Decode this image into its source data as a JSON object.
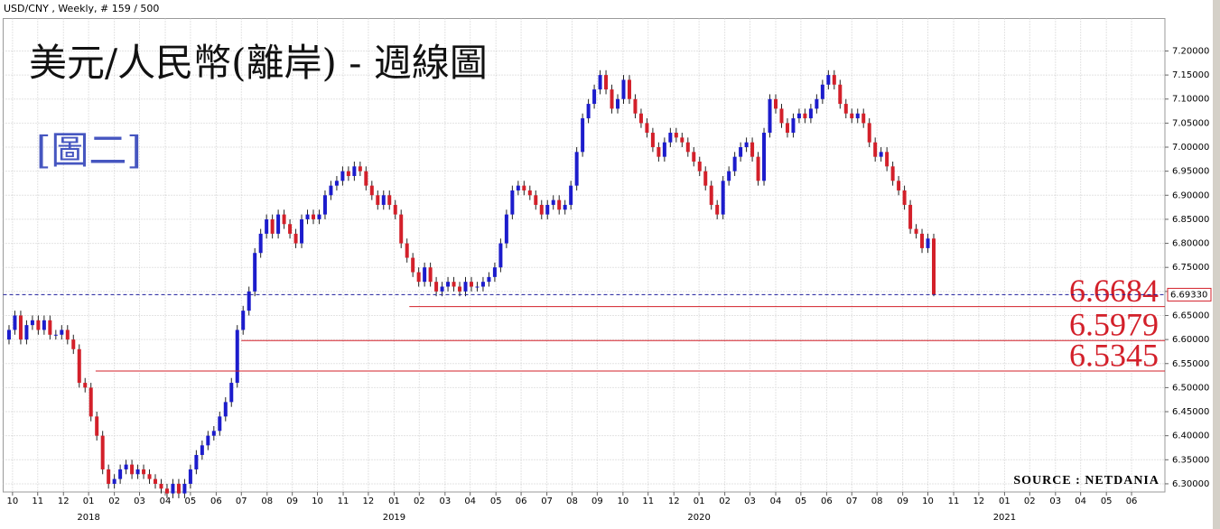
{
  "chart_data": {
    "type": "candlestick",
    "header": "USD/CNY , Weekly, # 159 / 500",
    "title": "美元/人民幣(離岸) - 週線圖",
    "subtitle": "[圖二]",
    "source": "SOURCE : NETDANIA",
    "up_color": "#1c1ccc",
    "down_color": "#d3202a",
    "grid": true,
    "open": [
      6.6,
      6.62,
      6.65,
      6.6,
      6.63,
      6.64,
      6.62,
      6.64,
      6.61,
      6.61,
      6.62,
      6.6,
      6.58,
      6.51,
      6.5,
      6.44,
      6.4,
      6.33,
      6.3,
      6.31,
      6.33,
      6.34,
      6.32,
      6.33,
      6.32,
      6.31,
      6.3,
      6.29,
      6.28,
      6.3,
      6.28,
      6.3,
      6.33,
      6.36,
      6.38,
      6.4,
      6.41,
      6.44,
      6.47,
      6.51,
      6.62,
      6.66,
      6.7,
      6.78,
      6.82,
      6.85,
      6.82,
      6.86,
      6.84,
      6.82,
      6.8,
      6.85,
      6.86,
      6.85,
      6.86,
      6.9,
      6.92,
      6.93,
      6.95,
      6.94,
      6.96,
      6.95,
      6.92,
      6.9,
      6.88,
      6.9,
      6.88,
      6.86,
      6.8,
      6.77,
      6.74,
      6.72,
      6.75,
      6.72,
      6.7,
      6.71,
      6.72,
      6.71,
      6.7,
      6.72,
      6.71,
      6.71,
      6.72,
      6.73,
      6.75,
      6.8,
      6.86,
      6.91,
      6.92,
      6.91,
      6.9,
      6.88,
      6.86,
      6.88,
      6.89,
      6.87,
      6.88,
      6.92,
      6.99,
      7.06,
      7.09,
      7.12,
      7.15,
      7.12,
      7.08,
      7.1,
      7.14,
      7.1,
      7.07,
      7.05,
      7.03,
      7.0,
      6.98,
      7.01,
      7.03,
      7.02,
      7.01,
      6.99,
      6.97,
      6.95,
      6.92,
      6.88,
      6.86,
      6.93,
      6.95,
      6.98,
      7.0,
      7.01,
      6.98,
      6.93,
      7.03,
      7.1,
      7.08,
      7.05,
      7.03,
      7.06,
      7.07,
      7.06,
      7.08,
      7.1,
      7.13,
      7.15,
      7.13,
      7.09,
      7.07,
      7.06,
      7.07,
      7.05,
      7.01,
      6.98,
      6.99,
      6.96,
      6.93,
      6.91,
      6.88,
      6.83,
      6.82,
      6.79,
      6.81
    ],
    "high": [
      6.63,
      6.66,
      6.66,
      6.64,
      6.65,
      6.65,
      6.65,
      6.65,
      6.62,
      6.63,
      6.63,
      6.61,
      6.59,
      6.52,
      6.51,
      6.45,
      6.41,
      6.34,
      6.32,
      6.34,
      6.35,
      6.35,
      6.34,
      6.34,
      6.33,
      6.32,
      6.31,
      6.3,
      6.31,
      6.31,
      6.31,
      6.34,
      6.37,
      6.39,
      6.41,
      6.42,
      6.45,
      6.48,
      6.52,
      6.63,
      6.67,
      6.71,
      6.79,
      6.83,
      6.86,
      6.86,
      6.87,
      6.87,
      6.85,
      6.83,
      6.86,
      6.87,
      6.87,
      6.87,
      6.91,
      6.93,
      6.94,
      6.96,
      6.96,
      6.97,
      6.97,
      6.96,
      6.93,
      6.91,
      6.91,
      6.91,
      6.89,
      6.87,
      6.81,
      6.78,
      6.75,
      6.76,
      6.76,
      6.73,
      6.72,
      6.73,
      6.73,
      6.72,
      6.73,
      6.73,
      6.72,
      6.73,
      6.74,
      6.76,
      6.81,
      6.87,
      6.92,
      6.93,
      6.93,
      6.92,
      6.91,
      6.89,
      6.89,
      6.9,
      6.9,
      6.89,
      6.93,
      7.0,
      7.07,
      7.1,
      7.13,
      7.16,
      7.16,
      7.13,
      7.11,
      7.15,
      7.15,
      7.11,
      7.08,
      7.06,
      7.04,
      7.01,
      7.02,
      7.04,
      7.04,
      7.03,
      7.02,
      7.0,
      6.98,
      6.96,
      6.93,
      6.89,
      6.94,
      6.96,
      6.99,
      7.01,
      7.02,
      7.02,
      6.99,
      7.04,
      7.11,
      7.11,
      7.09,
      7.06,
      7.07,
      7.08,
      7.08,
      7.09,
      7.11,
      7.14,
      7.16,
      7.16,
      7.14,
      7.1,
      7.08,
      7.08,
      7.08,
      7.06,
      7.02,
      7.0,
      7.0,
      6.97,
      6.94,
      6.92,
      6.89,
      6.84,
      6.83,
      6.82,
      6.82
    ],
    "low": [
      6.59,
      6.61,
      6.59,
      6.59,
      6.62,
      6.61,
      6.61,
      6.6,
      6.6,
      6.6,
      6.59,
      6.57,
      6.5,
      6.49,
      6.43,
      6.39,
      6.32,
      6.29,
      6.29,
      6.3,
      6.32,
      6.31,
      6.31,
      6.31,
      6.3,
      6.29,
      6.28,
      6.27,
      6.27,
      6.27,
      6.27,
      6.29,
      6.32,
      6.35,
      6.37,
      6.39,
      6.4,
      6.43,
      6.46,
      6.5,
      6.61,
      6.65,
      6.69,
      6.77,
      6.81,
      6.81,
      6.81,
      6.83,
      6.81,
      6.79,
      6.79,
      6.84,
      6.84,
      6.84,
      6.85,
      6.89,
      6.91,
      6.92,
      6.93,
      6.93,
      6.94,
      6.91,
      6.89,
      6.87,
      6.87,
      6.87,
      6.85,
      6.79,
      6.76,
      6.73,
      6.71,
      6.71,
      6.71,
      6.69,
      6.69,
      6.7,
      6.7,
      6.69,
      6.69,
      6.7,
      6.7,
      6.7,
      6.71,
      6.72,
      6.74,
      6.79,
      6.85,
      6.9,
      6.9,
      6.89,
      6.87,
      6.85,
      6.85,
      6.87,
      6.86,
      6.86,
      6.87,
      6.91,
      6.98,
      7.05,
      7.08,
      7.11,
      7.11,
      7.07,
      7.07,
      7.09,
      7.09,
      7.06,
      7.04,
      7.02,
      6.99,
      6.97,
      6.97,
      7.0,
      7.01,
      7.0,
      6.98,
      6.96,
      6.94,
      6.91,
      6.87,
      6.85,
      6.85,
      6.92,
      6.94,
      6.97,
      6.99,
      6.97,
      6.92,
      6.92,
      7.02,
      7.07,
      7.04,
      7.02,
      7.02,
      7.05,
      7.05,
      7.05,
      7.07,
      7.09,
      7.12,
      7.12,
      7.08,
      7.06,
      7.05,
      7.05,
      7.04,
      7.0,
      6.97,
      6.97,
      6.95,
      6.92,
      6.9,
      6.87,
      6.82,
      6.81,
      6.78,
      6.78,
      6.69
    ],
    "close": [
      6.62,
      6.65,
      6.6,
      6.63,
      6.64,
      6.62,
      6.64,
      6.61,
      6.61,
      6.62,
      6.6,
      6.58,
      6.51,
      6.5,
      6.44,
      6.4,
      6.33,
      6.3,
      6.31,
      6.33,
      6.34,
      6.32,
      6.33,
      6.32,
      6.31,
      6.3,
      6.29,
      6.28,
      6.3,
      6.28,
      6.3,
      6.33,
      6.36,
      6.38,
      6.4,
      6.41,
      6.44,
      6.47,
      6.51,
      6.62,
      6.66,
      6.7,
      6.78,
      6.82,
      6.85,
      6.82,
      6.86,
      6.84,
      6.82,
      6.8,
      6.85,
      6.86,
      6.85,
      6.86,
      6.9,
      6.92,
      6.93,
      6.95,
      6.94,
      6.96,
      6.95,
      6.92,
      6.9,
      6.88,
      6.9,
      6.88,
      6.86,
      6.8,
      6.77,
      6.74,
      6.72,
      6.75,
      6.72,
      6.7,
      6.71,
      6.72,
      6.71,
      6.7,
      6.72,
      6.71,
      6.71,
      6.72,
      6.73,
      6.75,
      6.8,
      6.86,
      6.91,
      6.92,
      6.91,
      6.9,
      6.88,
      6.86,
      6.88,
      6.89,
      6.87,
      6.88,
      6.92,
      6.99,
      7.06,
      7.09,
      7.12,
      7.15,
      7.12,
      7.08,
      7.1,
      7.14,
      7.1,
      7.07,
      7.05,
      7.03,
      7.0,
      6.98,
      7.01,
      7.03,
      7.02,
      7.01,
      6.99,
      6.97,
      6.95,
      6.92,
      6.88,
      6.86,
      6.93,
      6.95,
      6.98,
      7.0,
      7.01,
      6.98,
      6.93,
      7.03,
      7.1,
      7.08,
      7.05,
      7.03,
      7.06,
      7.07,
      7.06,
      7.08,
      7.1,
      7.13,
      7.15,
      7.13,
      7.09,
      7.07,
      7.06,
      7.07,
      7.05,
      7.01,
      6.98,
      6.99,
      6.96,
      6.93,
      6.91,
      6.88,
      6.83,
      6.82,
      6.79,
      6.81,
      6.6933
    ],
    "xlim": [
      -1,
      197.5
    ],
    "ylim": [
      6.283,
      7.2675
    ],
    "xticks": [
      {
        "value": 0.6,
        "label": "10"
      },
      {
        "value": 4.9,
        "label": "11"
      },
      {
        "value": 9.3,
        "label": "12"
      },
      {
        "value": 13.6,
        "label": "01"
      },
      {
        "value": 18.0,
        "label": "02"
      },
      {
        "value": 22.3,
        "label": "03"
      },
      {
        "value": 26.7,
        "label": "04"
      },
      {
        "value": 31.0,
        "label": "05"
      },
      {
        "value": 35.4,
        "label": "06"
      },
      {
        "value": 39.7,
        "label": "07"
      },
      {
        "value": 44.1,
        "label": "08"
      },
      {
        "value": 48.4,
        "label": "09"
      },
      {
        "value": 52.7,
        "label": "10"
      },
      {
        "value": 57.1,
        "label": "11"
      },
      {
        "value": 61.4,
        "label": "12"
      },
      {
        "value": 65.8,
        "label": "01"
      },
      {
        "value": 70.1,
        "label": "02"
      },
      {
        "value": 74.5,
        "label": "03"
      },
      {
        "value": 78.8,
        "label": "04"
      },
      {
        "value": 83.2,
        "label": "05"
      },
      {
        "value": 87.5,
        "label": "06"
      },
      {
        "value": 91.9,
        "label": "07"
      },
      {
        "value": 96.2,
        "label": "08"
      },
      {
        "value": 100.5,
        "label": "09"
      },
      {
        "value": 104.9,
        "label": "10"
      },
      {
        "value": 109.2,
        "label": "11"
      },
      {
        "value": 113.6,
        "label": "12"
      },
      {
        "value": 117.9,
        "label": "01"
      },
      {
        "value": 122.3,
        "label": "02"
      },
      {
        "value": 126.6,
        "label": "03"
      },
      {
        "value": 131.0,
        "label": "04"
      },
      {
        "value": 135.3,
        "label": "05"
      },
      {
        "value": 139.7,
        "label": "06"
      },
      {
        "value": 144.0,
        "label": "07"
      },
      {
        "value": 148.3,
        "label": "08"
      },
      {
        "value": 152.7,
        "label": "09"
      },
      {
        "value": 157.0,
        "label": "10"
      },
      {
        "value": 161.4,
        "label": "11"
      },
      {
        "value": 165.7,
        "label": "12"
      },
      {
        "value": 170.1,
        "label": "01"
      },
      {
        "value": 174.4,
        "label": "02"
      },
      {
        "value": 178.8,
        "label": "03"
      },
      {
        "value": 183.1,
        "label": "04"
      },
      {
        "value": 187.5,
        "label": "05"
      },
      {
        "value": 191.8,
        "label": "06"
      }
    ],
    "year_ticks": [
      {
        "value": 13.6,
        "label": "2018"
      },
      {
        "value": 65.8,
        "label": "2019"
      },
      {
        "value": 117.9,
        "label": "2020"
      },
      {
        "value": 170.1,
        "label": "2021"
      }
    ],
    "yticks": [
      {
        "value": 6.3,
        "label": "6.30000"
      },
      {
        "value": 6.35,
        "label": "6.35000"
      },
      {
        "value": 6.4,
        "label": "6.40000"
      },
      {
        "value": 6.45,
        "label": "6.45000"
      },
      {
        "value": 6.5,
        "label": "6.50000"
      },
      {
        "value": 6.55,
        "label": "6.55000"
      },
      {
        "value": 6.6,
        "label": "6.60000"
      },
      {
        "value": 6.65,
        "label": "6.65000"
      },
      {
        "value": 6.7,
        "label": "6.70000"
      },
      {
        "value": 6.75,
        "label": "6.75000"
      },
      {
        "value": 6.8,
        "label": "6.80000"
      },
      {
        "value": 6.85,
        "label": "6.85000"
      },
      {
        "value": 6.9,
        "label": "6.90000"
      },
      {
        "value": 6.95,
        "label": "6.95000"
      },
      {
        "value": 7.0,
        "label": "7.00000"
      },
      {
        "value": 7.05,
        "label": "7.05000"
      },
      {
        "value": 7.1,
        "label": "7.10000"
      },
      {
        "value": 7.15,
        "label": "7.15000"
      },
      {
        "value": 7.2,
        "label": "7.20000"
      }
    ],
    "last_price": {
      "value": 6.6933,
      "label": "6.69330"
    },
    "ref_lines": [
      {
        "value": 6.6684,
        "from": 68.4
      },
      {
        "value": 6.5979,
        "from": 39.7
      },
      {
        "value": 6.5345,
        "from": 14.8
      }
    ]
  }
}
